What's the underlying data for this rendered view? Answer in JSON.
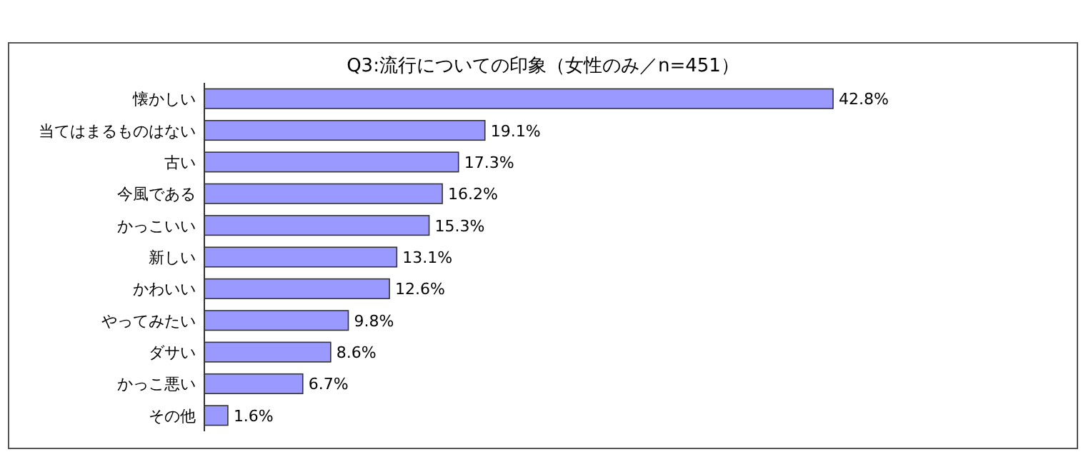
{
  "chart_data": {
    "type": "bar",
    "orientation": "horizontal",
    "title": "Q3:流行についての印象（女性のみ／n=451）",
    "categories": [
      "懐かしい",
      "当てはまるものはない",
      "古い",
      "今風である",
      "かっこいい",
      "新しい",
      "かわいい",
      "やってみたい",
      "ダサい",
      "かっこ悪い",
      "その他"
    ],
    "values": [
      42.8,
      19.1,
      17.3,
      16.2,
      15.3,
      13.1,
      12.6,
      9.8,
      8.6,
      6.7,
      1.6
    ],
    "value_labels": [
      "42.8%",
      "19.1%",
      "17.3%",
      "16.2%",
      "15.3%",
      "13.1%",
      "12.6%",
      "9.8%",
      "8.6%",
      "6.7%",
      "1.6%"
    ],
    "color": "#9999ff"
  }
}
